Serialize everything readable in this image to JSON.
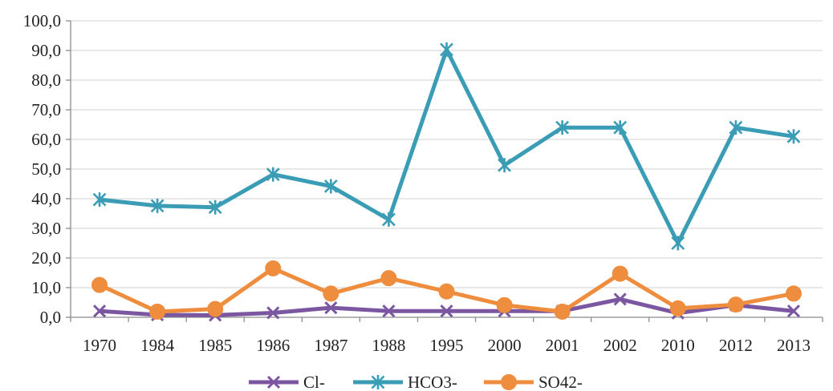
{
  "chart_data": {
    "type": "line",
    "title": "",
    "xlabel": "",
    "ylabel": "",
    "categories": [
      "1970",
      "1984",
      "1985",
      "1986",
      "1987",
      "1988",
      "1995",
      "2000",
      "2001",
      "2002",
      "2010",
      "2012",
      "2013"
    ],
    "ylim": [
      0,
      100
    ],
    "yticks": [
      "0,0",
      "10,0",
      "20,0",
      "30,0",
      "40,0",
      "50,0",
      "60,0",
      "70,0",
      "80,0",
      "90,0",
      "100,0"
    ],
    "grid": "horizontal",
    "legend_position": "bottom",
    "series": [
      {
        "name": "Cl-",
        "color": "#7b57a1",
        "marker": "x",
        "values": [
          2.1,
          0.8,
          0.7,
          1.5,
          3.2,
          2.1,
          2.1,
          2.1,
          2.1,
          6.1,
          1.4,
          4.1,
          2.1
        ]
      },
      {
        "name": "HCO3-",
        "color": "#3a9db5",
        "marker": "asterisk",
        "values": [
          39.7,
          37.6,
          37.1,
          48.2,
          44.2,
          33.0,
          90.3,
          51.3,
          64.0,
          64.0,
          25.0,
          64.0,
          61.0
        ]
      },
      {
        "name": "SO42-",
        "color": "#ef8d3e",
        "marker": "circle",
        "values": [
          10.9,
          1.9,
          2.8,
          16.5,
          8.0,
          13.2,
          8.7,
          4.1,
          1.9,
          14.7,
          3.0,
          4.3,
          8.0
        ]
      }
    ]
  }
}
